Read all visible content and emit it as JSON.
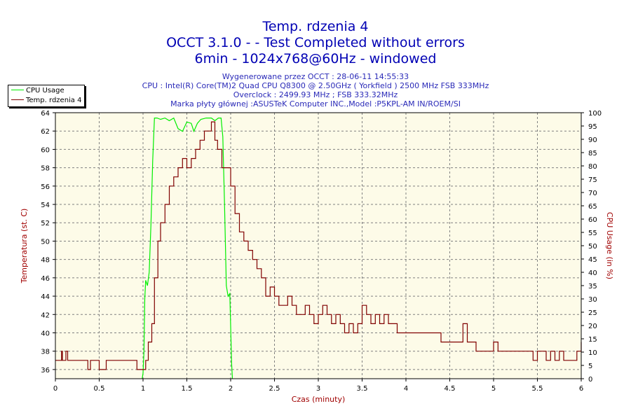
{
  "header": {
    "title_line1": "Temp. rdzenia 4",
    "title_line2": "OCCT 3.1.0 -  - Test Completed without errors",
    "title_line3": "6min - 1024x768@60Hz - windowed",
    "info_line1": "Wygenerowane przez OCCT : 28-06-11 14:55:33",
    "info_line2": "CPU : Intel(R) Core(TM)2 Quad CPU Q8300 @ 2.50GHz ( Yorkfield ) 2500 MHz FSB 333MHz",
    "info_line3": "Overclock : 2499.93 MHz ; FSB 333.32MHz",
    "info_line4": "Marka płyty głównej :ASUSTeK Computer INC.,Model :P5KPL-AM IN/ROEM/SI"
  },
  "colors": {
    "plot_bg": "#fdfbe8",
    "cpu_usage": "#00ee00",
    "temperature": "#800000",
    "axis_text": "#000000",
    "label_text": "#a00000",
    "grid": "#808080"
  },
  "chart_data": {
    "type": "line",
    "xlabel": "Czas (minuty)",
    "ylabel_left": "Temperatura (st. C)",
    "ylabel_right": "CPU Usage (in %)",
    "xlim": [
      0,
      6
    ],
    "ylim_left": [
      35,
      64
    ],
    "ylim_right": [
      0,
      100
    ],
    "x_ticks": [
      "0",
      "0.5",
      "1",
      "1.5",
      "2",
      "2.5",
      "3",
      "3.5",
      "4",
      "4.5",
      "5",
      "5.5",
      "6"
    ],
    "y_left_ticks": [
      "36",
      "38",
      "40",
      "42",
      "44",
      "46",
      "48",
      "50",
      "52",
      "54",
      "56",
      "58",
      "60",
      "62",
      "64"
    ],
    "y_right_ticks": [
      "0",
      "5",
      "10",
      "15",
      "20",
      "25",
      "30",
      "35",
      "40",
      "45",
      "50",
      "55",
      "60",
      "65",
      "70",
      "75",
      "80",
      "85",
      "90",
      "95",
      "100"
    ],
    "grid": true,
    "legend_position": "top-left",
    "legend": [
      "CPU Usage",
      "Temp. rdzenia 4"
    ],
    "series": [
      {
        "name": "CPU Usage",
        "axis": "right",
        "points": [
          [
            0.99,
            0
          ],
          [
            1.0,
            2
          ],
          [
            1.01,
            10
          ],
          [
            1.02,
            30
          ],
          [
            1.03,
            37
          ],
          [
            1.05,
            35
          ],
          [
            1.07,
            40
          ],
          [
            1.09,
            58
          ],
          [
            1.11,
            82
          ],
          [
            1.13,
            98
          ],
          [
            1.16,
            98
          ],
          [
            1.2,
            97.5
          ],
          [
            1.25,
            98
          ],
          [
            1.3,
            97
          ],
          [
            1.35,
            98
          ],
          [
            1.4,
            94
          ],
          [
            1.45,
            93
          ],
          [
            1.5,
            96.5
          ],
          [
            1.55,
            96
          ],
          [
            1.58,
            93
          ],
          [
            1.62,
            96
          ],
          [
            1.66,
            97.5
          ],
          [
            1.72,
            98
          ],
          [
            1.78,
            98
          ],
          [
            1.82,
            97
          ],
          [
            1.86,
            98
          ],
          [
            1.89,
            98
          ],
          [
            1.91,
            91
          ],
          [
            1.93,
            65
          ],
          [
            1.95,
            35
          ],
          [
            1.97,
            31
          ],
          [
            1.99,
            32
          ],
          [
            2.01,
            6
          ],
          [
            2.02,
            0
          ]
        ]
      },
      {
        "name": "Temp. rdzenia 4",
        "axis": "left",
        "points": [
          [
            0.0,
            37
          ],
          [
            0.05,
            37
          ],
          [
            0.07,
            38
          ],
          [
            0.08,
            37
          ],
          [
            0.1,
            37
          ],
          [
            0.12,
            38
          ],
          [
            0.14,
            37
          ],
          [
            0.16,
            37
          ],
          [
            0.2,
            37
          ],
          [
            0.25,
            37
          ],
          [
            0.3,
            37
          ],
          [
            0.35,
            37
          ],
          [
            0.37,
            36
          ],
          [
            0.4,
            37
          ],
          [
            0.45,
            37
          ],
          [
            0.5,
            36
          ],
          [
            0.55,
            36
          ],
          [
            0.58,
            37
          ],
          [
            0.7,
            37
          ],
          [
            0.8,
            37
          ],
          [
            0.9,
            37
          ],
          [
            0.93,
            36
          ],
          [
            0.97,
            36
          ],
          [
            1.0,
            36
          ],
          [
            1.03,
            37
          ],
          [
            1.06,
            39
          ],
          [
            1.1,
            41
          ],
          [
            1.13,
            46
          ],
          [
            1.17,
            50
          ],
          [
            1.2,
            52
          ],
          [
            1.25,
            54
          ],
          [
            1.3,
            56
          ],
          [
            1.35,
            57
          ],
          [
            1.4,
            58
          ],
          [
            1.45,
            59
          ],
          [
            1.5,
            58
          ],
          [
            1.55,
            59
          ],
          [
            1.6,
            60
          ],
          [
            1.65,
            61
          ],
          [
            1.7,
            62
          ],
          [
            1.74,
            62
          ],
          [
            1.78,
            63
          ],
          [
            1.82,
            61
          ],
          [
            1.85,
            60
          ],
          [
            1.9,
            58
          ],
          [
            1.95,
            58
          ],
          [
            2.0,
            56
          ],
          [
            2.05,
            53
          ],
          [
            2.1,
            51
          ],
          [
            2.15,
            50
          ],
          [
            2.2,
            49
          ],
          [
            2.25,
            48
          ],
          [
            2.3,
            47
          ],
          [
            2.35,
            46
          ],
          [
            2.4,
            44
          ],
          [
            2.45,
            45
          ],
          [
            2.5,
            44
          ],
          [
            2.55,
            43
          ],
          [
            2.6,
            43
          ],
          [
            2.65,
            44
          ],
          [
            2.7,
            43
          ],
          [
            2.75,
            42
          ],
          [
            2.8,
            42
          ],
          [
            2.85,
            43
          ],
          [
            2.9,
            42
          ],
          [
            2.95,
            41
          ],
          [
            3.0,
            42
          ],
          [
            3.05,
            43
          ],
          [
            3.1,
            42
          ],
          [
            3.15,
            41
          ],
          [
            3.2,
            42
          ],
          [
            3.25,
            41
          ],
          [
            3.3,
            40
          ],
          [
            3.35,
            41
          ],
          [
            3.4,
            40
          ],
          [
            3.45,
            41
          ],
          [
            3.5,
            43
          ],
          [
            3.55,
            42
          ],
          [
            3.6,
            41
          ],
          [
            3.65,
            42
          ],
          [
            3.7,
            41
          ],
          [
            3.75,
            42
          ],
          [
            3.8,
            41
          ],
          [
            3.85,
            41
          ],
          [
            3.9,
            40
          ],
          [
            3.95,
            40
          ],
          [
            4.0,
            40
          ],
          [
            4.1,
            40
          ],
          [
            4.2,
            40
          ],
          [
            4.3,
            40
          ],
          [
            4.4,
            39
          ],
          [
            4.5,
            39
          ],
          [
            4.55,
            39
          ],
          [
            4.6,
            39
          ],
          [
            4.65,
            41
          ],
          [
            4.7,
            39
          ],
          [
            4.75,
            39
          ],
          [
            4.8,
            38
          ],
          [
            4.9,
            38
          ],
          [
            5.0,
            39
          ],
          [
            5.05,
            38
          ],
          [
            5.1,
            38
          ],
          [
            5.2,
            38
          ],
          [
            5.3,
            38
          ],
          [
            5.4,
            38
          ],
          [
            5.45,
            37
          ],
          [
            5.5,
            38
          ],
          [
            5.55,
            38
          ],
          [
            5.6,
            37
          ],
          [
            5.65,
            38
          ],
          [
            5.7,
            37
          ],
          [
            5.75,
            38
          ],
          [
            5.8,
            37
          ],
          [
            5.9,
            37
          ],
          [
            5.95,
            38
          ],
          [
            6.0,
            39
          ]
        ]
      }
    ]
  }
}
